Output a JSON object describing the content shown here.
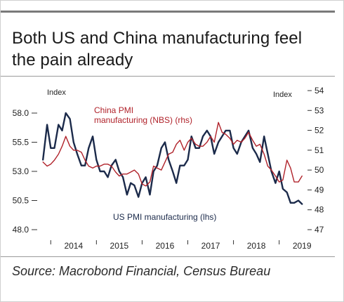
{
  "header": {
    "title_line1": "Both US and China manufacturing feel",
    "title_line2": "the pain already"
  },
  "footer": {
    "source": "Source: Macrobond Financial, Census Bureau"
  },
  "chart_data": {
    "type": "line",
    "title": "Both US and China manufacturing feel the pain already",
    "left_axis_label": "Index",
    "right_axis_label": "Index",
    "left_ylim": [
      48.0,
      58.0
    ],
    "right_ylim": [
      47,
      54
    ],
    "left_ticks": [
      "58.0",
      "55.5",
      "53.0",
      "50.5",
      "48.0"
    ],
    "right_ticks": [
      "54",
      "53",
      "52",
      "51",
      "50",
      "49",
      "48",
      "47"
    ],
    "x_ticks": [
      "2014",
      "2015",
      "2016",
      "2017",
      "2018",
      "2019"
    ],
    "xlim": [
      2013.75,
      2019.62
    ],
    "grid": false,
    "colors": {
      "us": "#1b2a4a",
      "china": "#b0222a"
    },
    "annotations": {
      "china_label_line1": "China PMI",
      "china_label_line2": "manufacturing (NBS) (rhs)",
      "us_label": "US PMI manufacturing (lhs)"
    },
    "series": [
      {
        "name": "US PMI manufacturing (lhs)",
        "axis": "left",
        "x": [
          2013.83,
          2013.92,
          2014.0,
          2014.08,
          2014.17,
          2014.25,
          2014.33,
          2014.42,
          2014.5,
          2014.58,
          2014.67,
          2014.75,
          2014.83,
          2014.92,
          2015.0,
          2015.08,
          2015.17,
          2015.25,
          2015.33,
          2015.42,
          2015.5,
          2015.58,
          2015.67,
          2015.75,
          2015.83,
          2015.92,
          2016.0,
          2016.08,
          2016.17,
          2016.25,
          2016.33,
          2016.42,
          2016.5,
          2016.58,
          2016.67,
          2016.75,
          2016.83,
          2016.92,
          2017.0,
          2017.08,
          2017.17,
          2017.25,
          2017.33,
          2017.42,
          2017.5,
          2017.58,
          2017.67,
          2017.75,
          2017.83,
          2017.92,
          2018.0,
          2018.08,
          2018.17,
          2018.25,
          2018.33,
          2018.42,
          2018.5,
          2018.58,
          2018.67,
          2018.75,
          2018.83,
          2018.92,
          2019.0,
          2019.08,
          2019.17,
          2019.25,
          2019.33,
          2019.42,
          2019.5
        ],
        "y": [
          54.0,
          57.0,
          55.0,
          55.0,
          57.0,
          56.5,
          58.0,
          57.5,
          55.5,
          54.5,
          53.5,
          53.5,
          55.0,
          56.0,
          54.0,
          53.0,
          53.0,
          52.5,
          53.5,
          54.0,
          53.0,
          52.5,
          51.0,
          52.0,
          51.8,
          50.8,
          52.0,
          52.5,
          51.0,
          53.0,
          53.5,
          55.0,
          55.5,
          54.0,
          53.0,
          52.0,
          53.5,
          53.5,
          54.0,
          56.0,
          55.0,
          55.0,
          56.0,
          56.5,
          56.0,
          54.5,
          55.5,
          56.0,
          56.5,
          56.5,
          55.0,
          54.5,
          55.5,
          56.0,
          56.5,
          55.0,
          54.5,
          53.8,
          56.0,
          54.5,
          53.0,
          52.0,
          53.0,
          51.5,
          51.2,
          50.3,
          50.3,
          50.5,
          50.2
        ]
      },
      {
        "name": "China PMI manufacturing (NBS) (rhs)",
        "axis": "right",
        "x": [
          2013.83,
          2013.92,
          2014.0,
          2014.08,
          2014.17,
          2014.25,
          2014.33,
          2014.42,
          2014.5,
          2014.58,
          2014.67,
          2014.75,
          2014.83,
          2014.92,
          2015.0,
          2015.08,
          2015.17,
          2015.25,
          2015.33,
          2015.42,
          2015.5,
          2015.58,
          2015.67,
          2015.75,
          2015.83,
          2015.92,
          2016.0,
          2016.08,
          2016.17,
          2016.25,
          2016.33,
          2016.42,
          2016.5,
          2016.58,
          2016.67,
          2016.75,
          2016.83,
          2016.92,
          2017.0,
          2017.08,
          2017.17,
          2017.25,
          2017.33,
          2017.42,
          2017.5,
          2017.58,
          2017.67,
          2017.75,
          2017.83,
          2017.92,
          2018.0,
          2018.08,
          2018.17,
          2018.25,
          2018.33,
          2018.42,
          2018.5,
          2018.58,
          2018.67,
          2018.75,
          2018.83,
          2018.92,
          2019.0,
          2019.08,
          2019.17,
          2019.25,
          2019.33,
          2019.42,
          2019.5
        ],
        "y": [
          50.4,
          50.2,
          50.3,
          50.5,
          50.8,
          51.2,
          51.7,
          51.2,
          51.0,
          51.0,
          50.9,
          50.5,
          50.2,
          50.1,
          50.2,
          50.2,
          50.3,
          50.3,
          50.2,
          49.9,
          49.7,
          49.8,
          49.8,
          49.9,
          50.0,
          49.8,
          49.3,
          49.2,
          49.4,
          50.2,
          50.1,
          50.0,
          50.4,
          50.8,
          50.9,
          51.3,
          51.5,
          51.0,
          51.4,
          51.6,
          51.3,
          51.2,
          51.2,
          51.4,
          51.7,
          51.4,
          52.4,
          51.9,
          51.8,
          51.6,
          51.3,
          51.5,
          51.4,
          51.6,
          51.9,
          51.5,
          51.2,
          51.3,
          50.8,
          50.2,
          50.0,
          49.7,
          49.4,
          49.5,
          50.5,
          50.1,
          49.4,
          49.4,
          49.7
        ]
      }
    ]
  }
}
